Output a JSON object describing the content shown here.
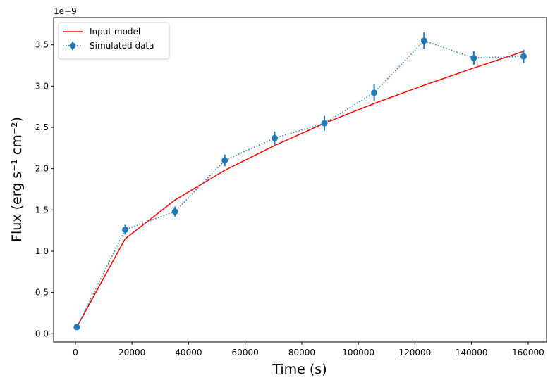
{
  "chart_data": {
    "type": "line",
    "xlabel": "Time (s)",
    "ylabel": "Flux (erg s⁻¹ cm⁻²)",
    "y_offset_label": "1e−9",
    "xlim": [
      -7700,
      166500
    ],
    "ylim": [
      -0.1,
      3.83
    ],
    "xticks": [
      0,
      20000,
      40000,
      60000,
      80000,
      100000,
      120000,
      140000,
      160000
    ],
    "yticks": [
      {
        "value": 0,
        "label": "0.0"
      },
      {
        "value": 0.5,
        "label": "0.5"
      },
      {
        "value": 1,
        "label": "1.0"
      },
      {
        "value": 1.5,
        "label": "1.5"
      },
      {
        "value": 2,
        "label": "2.0"
      },
      {
        "value": 2.5,
        "label": "2.5"
      },
      {
        "value": 3,
        "label": "3.0"
      },
      {
        "value": 3.5,
        "label": "3.5"
      }
    ],
    "legend": "upper left",
    "x": [
      500,
      17600,
      35200,
      52800,
      70400,
      88000,
      105600,
      123200,
      140800,
      158400
    ],
    "series": [
      {
        "name": "Input model",
        "color": "#ff0000",
        "style": "solid",
        "markers": false,
        "values": [
          0.08,
          1.15,
          1.62,
          1.98,
          2.28,
          2.55,
          2.79,
          3.01,
          3.22,
          3.42
        ]
      },
      {
        "name": "Simulated data",
        "color": "#1f77b4",
        "style": "dotted",
        "markers": true,
        "values": [
          0.08,
          1.26,
          1.48,
          2.1,
          2.37,
          2.55,
          2.92,
          3.55,
          3.34,
          3.36
        ],
        "errors": [
          0.03,
          0.06,
          0.06,
          0.07,
          0.08,
          0.09,
          0.1,
          0.1,
          0.08,
          0.08
        ]
      }
    ]
  }
}
